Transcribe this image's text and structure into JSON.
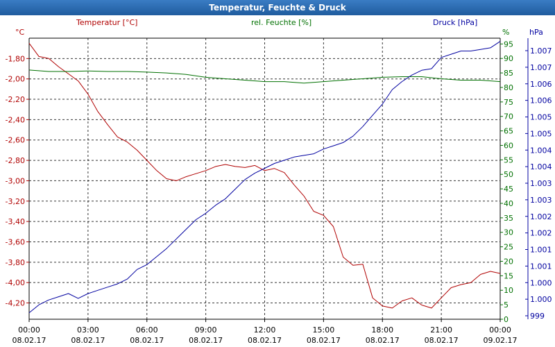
{
  "window": {
    "title": "Temperatur, Feuchte & Druck"
  },
  "chart_data": {
    "type": "line",
    "title": "Temperatur, Feuchte & Druck",
    "colors": {
      "temperature": "#b00000",
      "humidity": "#007000",
      "pressure": "#0000a0"
    },
    "x_ticks": [
      {
        "time": "00:00",
        "date": "08.02.17"
      },
      {
        "time": "03:00",
        "date": "08.02.17"
      },
      {
        "time": "06:00",
        "date": "08.02.17"
      },
      {
        "time": "09:00",
        "date": "08.02.17"
      },
      {
        "time": "12:00",
        "date": "08.02.17"
      },
      {
        "time": "15:00",
        "date": "08.02.17"
      },
      {
        "time": "18:00",
        "date": "08.02.17"
      },
      {
        "time": "21:00",
        "date": "08.02.17"
      },
      {
        "time": "00:00",
        "date": "09.02.17"
      }
    ],
    "x_range_hours": [
      0,
      24
    ],
    "axes": {
      "temperature": {
        "label": "Temperatur [°C]",
        "unit": "°C",
        "range": [
          -4.36,
          -1.6
        ],
        "ticks": [
          "-1,80",
          "-2,00",
          "-2,20",
          "-2,40",
          "-2,60",
          "-2,80",
          "-3,00",
          "-3,20",
          "-3,40",
          "-3,60",
          "-3,80",
          "-4,00",
          "-4,20"
        ],
        "tick_values": [
          -1.8,
          -2.0,
          -2.2,
          -2.4,
          -2.6,
          -2.8,
          -3.0,
          -3.2,
          -3.4,
          -3.6,
          -3.8,
          -4.0,
          -4.2
        ]
      },
      "humidity": {
        "label": "rel. Feuchte [%]",
        "unit": "%",
        "range": [
          0,
          97
        ],
        "ticks": [
          "95",
          "90",
          "85",
          "80",
          "75",
          "70",
          "65",
          "60",
          "55",
          "50",
          "45",
          "40",
          "35",
          "30",
          "25",
          "20",
          "15",
          "10",
          "5",
          "0"
        ],
        "tick_values": [
          95,
          90,
          85,
          80,
          75,
          70,
          65,
          60,
          55,
          50,
          45,
          40,
          35,
          30,
          25,
          20,
          15,
          10,
          5,
          0
        ]
      },
      "pressure": {
        "label": "Druck [hPa]",
        "unit": "hPa",
        "ticks": [
          "1.007",
          "1.007",
          "1.006",
          "1.006",
          "1.005",
          "1.005",
          "1.004",
          "1.004",
          "1.003",
          "1.003",
          "1.002",
          "1.002",
          "1.001",
          "1.001",
          "1.000",
          "1.000",
          "999"
        ]
      }
    },
    "series": [
      {
        "name": "Temperatur [°C]",
        "axis": "temperature",
        "x": [
          0,
          0.5,
          1,
          1.5,
          2,
          2.5,
          3,
          3.5,
          4,
          4.5,
          5,
          5.5,
          6,
          6.5,
          7,
          7.5,
          8,
          8.5,
          9,
          9.5,
          10,
          10.5,
          11,
          11.5,
          12,
          12.5,
          13,
          13.5,
          14,
          14.5,
          15,
          15.5,
          16,
          16.5,
          17,
          17.5,
          18,
          18.5,
          19,
          19.5,
          20,
          20.5,
          21,
          21.5,
          22,
          22.5,
          23,
          23.5,
          24
        ],
        "values": [
          -1.65,
          -1.78,
          -1.8,
          -1.88,
          -1.95,
          -2.02,
          -2.15,
          -2.32,
          -2.45,
          -2.57,
          -2.62,
          -2.7,
          -2.8,
          -2.9,
          -2.98,
          -3.0,
          -2.96,
          -2.93,
          -2.9,
          -2.86,
          -2.84,
          -2.86,
          -2.87,
          -2.85,
          -2.9,
          -2.88,
          -2.92,
          -3.04,
          -3.15,
          -3.3,
          -3.34,
          -3.45,
          -3.75,
          -3.83,
          -3.82,
          -4.15,
          -4.23,
          -4.25,
          -4.18,
          -4.15,
          -4.22,
          -4.25,
          -4.15,
          -4.05,
          -4.02,
          -4.0,
          -3.92,
          -3.89,
          -3.91
        ]
      },
      {
        "name": "rel. Feuchte [%]",
        "axis": "humidity",
        "x": [
          0,
          1,
          2,
          3,
          4,
          5,
          6,
          7,
          8,
          9,
          10,
          11,
          12,
          13,
          14,
          15,
          16,
          17,
          18,
          19,
          20,
          21,
          22,
          23,
          24
        ],
        "values": [
          86,
          85.5,
          85.5,
          85.7,
          85.5,
          85.5,
          85.3,
          85,
          84.5,
          83.5,
          83,
          82.5,
          82,
          82,
          81.5,
          82,
          82.5,
          83,
          83.5,
          83.7,
          83.7,
          83,
          82.5,
          82.5,
          82
        ]
      },
      {
        "name": "Druck [hPa]",
        "axis": "pressure",
        "range": [
          998.8,
          1007.55
        ],
        "x": [
          0,
          0.5,
          1,
          1.5,
          2,
          2.5,
          3,
          3.5,
          4,
          4.5,
          5,
          5.5,
          6,
          6.5,
          7,
          7.5,
          8,
          8.5,
          9,
          9.5,
          10,
          10.5,
          11,
          11.5,
          12,
          12.5,
          13,
          13.5,
          14,
          14.5,
          15,
          15.5,
          16,
          16.5,
          17,
          17.5,
          18,
          18.5,
          19,
          19.5,
          20,
          20.5,
          21,
          21.5,
          22,
          22.5,
          23,
          23.5,
          24
        ],
        "values": [
          999.0,
          999.25,
          999.4,
          999.5,
          999.6,
          999.45,
          999.6,
          999.7,
          999.8,
          999.9,
          1000.05,
          1000.35,
          1000.5,
          1000.75,
          1001.0,
          1001.3,
          1001.6,
          1001.9,
          1002.1,
          1002.35,
          1002.55,
          1002.85,
          1003.15,
          1003.35,
          1003.5,
          1003.65,
          1003.75,
          1003.85,
          1003.9,
          1003.95,
          1004.1,
          1004.2,
          1004.3,
          1004.5,
          1004.8,
          1005.15,
          1005.5,
          1005.95,
          1006.2,
          1006.4,
          1006.55,
          1006.6,
          1006.95,
          1007.05,
          1007.15,
          1007.15,
          1007.2,
          1007.25,
          1007.45
        ]
      }
    ]
  }
}
